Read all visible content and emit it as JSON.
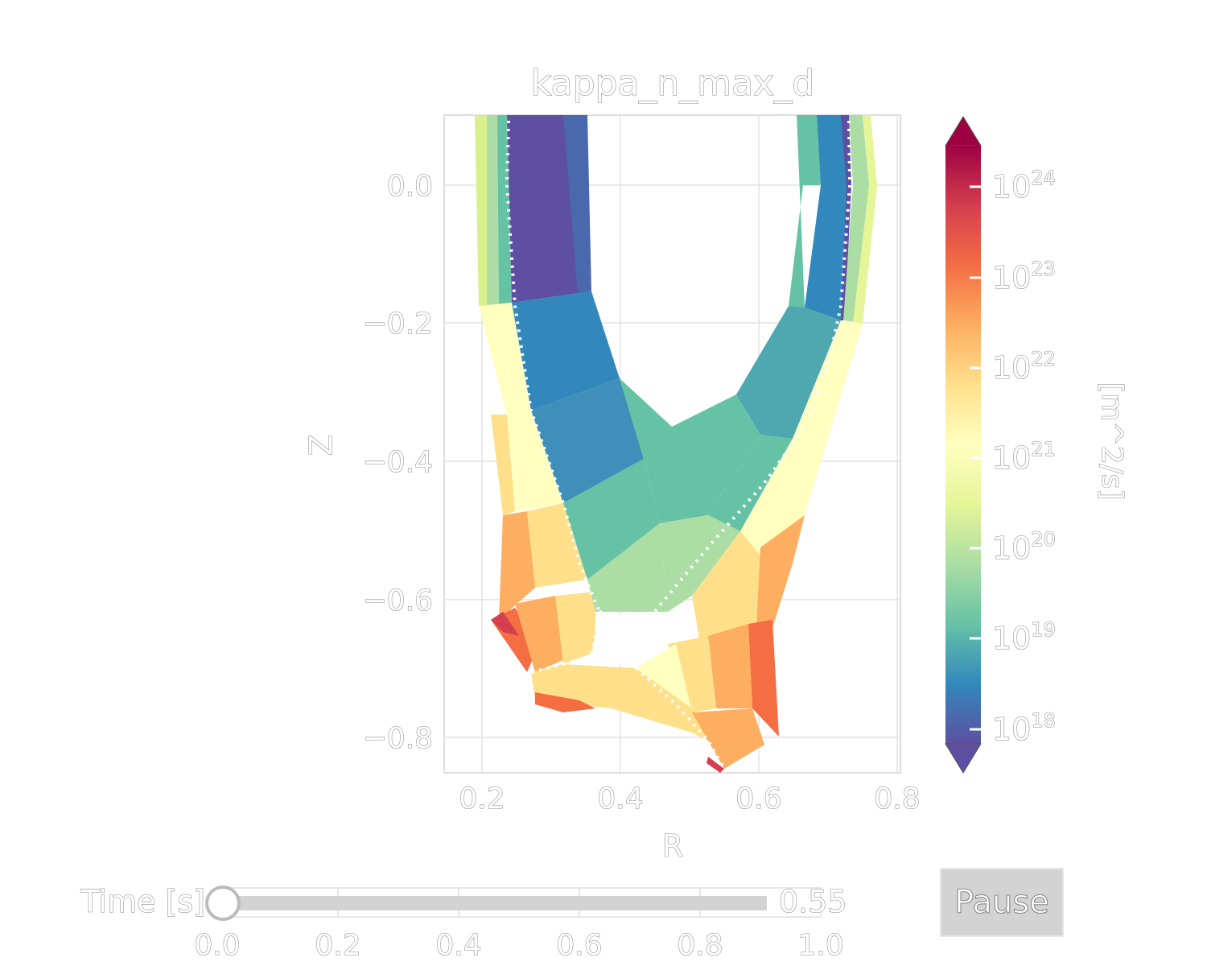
{
  "chart_data": {
    "type": "heatmap",
    "title": "kappa_n_max_d",
    "xlabel": "R",
    "ylabel": "Z",
    "xlim": [
      0.15,
      0.81
    ],
    "ylim": [
      -0.85,
      0.1
    ],
    "xticks": [
      "0.2",
      "0.4",
      "0.6",
      "0.8"
    ],
    "yticks": [
      "0.0",
      "−0.2",
      "−0.4",
      "−0.6",
      "−0.8"
    ],
    "grid": true,
    "colorbar": {
      "label": "[m^2/s]",
      "scale": "log",
      "colormap": "Spectral_r",
      "range": [
        1e+18,
        3e+24
      ],
      "ticks": [
        {
          "base": "10",
          "exp": "18",
          "value": 18
        },
        {
          "base": "10",
          "exp": "19",
          "value": 19
        },
        {
          "base": "10",
          "exp": "20",
          "value": 20
        },
        {
          "base": "10",
          "exp": "21",
          "value": 21
        },
        {
          "base": "10",
          "exp": "22",
          "value": 22
        },
        {
          "base": "10",
          "exp": "23",
          "value": 23
        },
        {
          "base": "10",
          "exp": "24",
          "value": 24
        }
      ],
      "extend": "both"
    },
    "separatrix_style": "dotted white"
  },
  "slider": {
    "label": "Time [s]",
    "value": "0.55",
    "ticks": [
      "0.0",
      "0.2",
      "0.4",
      "0.6",
      "0.8",
      "1.0"
    ],
    "position": 0.0,
    "range": [
      0,
      1
    ]
  },
  "controls": {
    "pause_label": "Pause"
  }
}
